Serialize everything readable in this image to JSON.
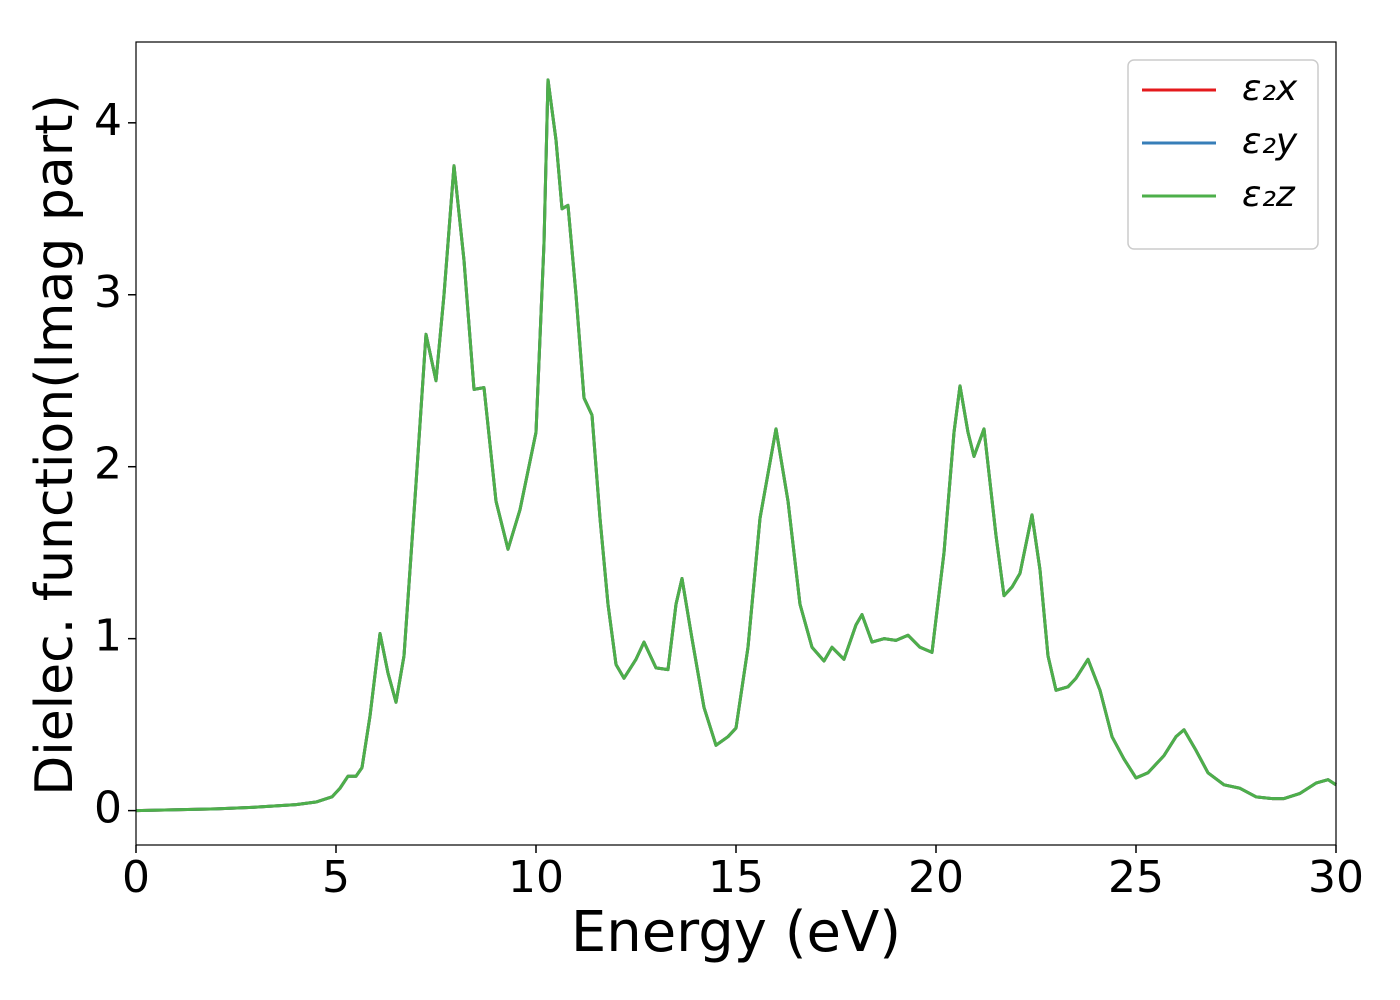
{
  "chart_data": {
    "type": "line",
    "xlabel": "Energy (eV)",
    "ylabel": "Dielec. function(Imag part)",
    "x": [
      0,
      1,
      2,
      3,
      4,
      4.5,
      4.9,
      5.1,
      5.3,
      5.5,
      5.65,
      5.85,
      6.1,
      6.3,
      6.5,
      6.7,
      7.0,
      7.25,
      7.5,
      7.7,
      7.95,
      8.2,
      8.45,
      8.7,
      9.0,
      9.3,
      9.6,
      10.0,
      10.2,
      10.3,
      10.5,
      10.65,
      10.8,
      11.0,
      11.2,
      11.4,
      11.6,
      11.8,
      12.0,
      12.2,
      12.5,
      12.7,
      13.0,
      13.3,
      13.5,
      13.65,
      13.9,
      14.2,
      14.5,
      14.8,
      15.0,
      15.3,
      15.6,
      16.0,
      16.3,
      16.6,
      16.9,
      17.2,
      17.4,
      17.7,
      18.0,
      18.15,
      18.4,
      18.7,
      19.0,
      19.3,
      19.6,
      19.9,
      20.2,
      20.45,
      20.6,
      20.8,
      20.95,
      21.2,
      21.5,
      21.7,
      21.9,
      22.1,
      22.4,
      22.6,
      22.8,
      23.0,
      23.3,
      23.5,
      23.8,
      24.1,
      24.4,
      24.7,
      25.0,
      25.3,
      25.7,
      26.0,
      26.2,
      26.5,
      26.8,
      27.2,
      27.6,
      28.0,
      28.4,
      28.7,
      29.1,
      29.5,
      29.8,
      30
    ],
    "series": [
      {
        "name": "ε₂x",
        "color": "#e41a1c",
        "values": [
          0,
          0.005,
          0.01,
          0.02,
          0.035,
          0.05,
          0.08,
          0.13,
          0.2,
          0.2,
          0.25,
          0.55,
          1.03,
          0.8,
          0.63,
          0.9,
          1.9,
          2.77,
          2.5,
          3.0,
          3.75,
          3.2,
          2.45,
          2.46,
          1.8,
          1.52,
          1.75,
          2.2,
          3.3,
          4.25,
          3.9,
          3.5,
          3.52,
          3.0,
          2.4,
          2.3,
          1.7,
          1.2,
          0.85,
          0.77,
          0.88,
          0.98,
          0.83,
          0.82,
          1.2,
          1.35,
          1.0,
          0.6,
          0.38,
          0.43,
          0.48,
          0.95,
          1.7,
          2.22,
          1.8,
          1.2,
          0.95,
          0.87,
          0.95,
          0.88,
          1.08,
          1.14,
          0.98,
          1.0,
          0.99,
          1.02,
          0.95,
          0.92,
          1.5,
          2.2,
          2.47,
          2.2,
          2.06,
          2.22,
          1.6,
          1.25,
          1.3,
          1.38,
          1.72,
          1.4,
          0.9,
          0.7,
          0.72,
          0.77,
          0.88,
          0.7,
          0.43,
          0.3,
          0.19,
          0.22,
          0.32,
          0.43,
          0.47,
          0.35,
          0.22,
          0.15,
          0.13,
          0.08,
          0.07,
          0.07,
          0.1,
          0.16,
          0.18,
          0.15
        ]
      },
      {
        "name": "ε₂y",
        "color": "#377eb8",
        "values": [
          0,
          0.005,
          0.01,
          0.02,
          0.035,
          0.05,
          0.08,
          0.13,
          0.2,
          0.2,
          0.25,
          0.55,
          1.03,
          0.8,
          0.63,
          0.9,
          1.9,
          2.77,
          2.5,
          3.0,
          3.75,
          3.2,
          2.45,
          2.46,
          1.8,
          1.52,
          1.75,
          2.2,
          3.3,
          4.25,
          3.9,
          3.5,
          3.52,
          3.0,
          2.4,
          2.3,
          1.7,
          1.2,
          0.85,
          0.77,
          0.88,
          0.98,
          0.83,
          0.82,
          1.2,
          1.35,
          1.0,
          0.6,
          0.38,
          0.43,
          0.48,
          0.95,
          1.7,
          2.22,
          1.8,
          1.2,
          0.95,
          0.87,
          0.95,
          0.88,
          1.08,
          1.14,
          0.98,
          1.0,
          0.99,
          1.02,
          0.95,
          0.92,
          1.5,
          2.2,
          2.47,
          2.2,
          2.06,
          2.22,
          1.6,
          1.25,
          1.3,
          1.38,
          1.72,
          1.4,
          0.9,
          0.7,
          0.72,
          0.77,
          0.88,
          0.7,
          0.43,
          0.3,
          0.19,
          0.22,
          0.32,
          0.43,
          0.47,
          0.35,
          0.22,
          0.15,
          0.13,
          0.08,
          0.07,
          0.07,
          0.1,
          0.16,
          0.18,
          0.15
        ]
      },
      {
        "name": "ε₂z",
        "color": "#4daf4a",
        "values": [
          0,
          0.005,
          0.01,
          0.02,
          0.035,
          0.05,
          0.08,
          0.13,
          0.2,
          0.2,
          0.25,
          0.55,
          1.03,
          0.8,
          0.63,
          0.9,
          1.9,
          2.77,
          2.5,
          3.0,
          3.75,
          3.2,
          2.45,
          2.46,
          1.8,
          1.52,
          1.75,
          2.2,
          3.3,
          4.25,
          3.9,
          3.5,
          3.52,
          3.0,
          2.4,
          2.3,
          1.7,
          1.2,
          0.85,
          0.77,
          0.88,
          0.98,
          0.83,
          0.82,
          1.2,
          1.35,
          1.0,
          0.6,
          0.38,
          0.43,
          0.48,
          0.95,
          1.7,
          2.22,
          1.8,
          1.2,
          0.95,
          0.87,
          0.95,
          0.88,
          1.08,
          1.14,
          0.98,
          1.0,
          0.99,
          1.02,
          0.95,
          0.92,
          1.5,
          2.2,
          2.47,
          2.2,
          2.06,
          2.22,
          1.6,
          1.25,
          1.3,
          1.38,
          1.72,
          1.4,
          0.9,
          0.7,
          0.72,
          0.77,
          0.88,
          0.7,
          0.43,
          0.3,
          0.19,
          0.22,
          0.32,
          0.43,
          0.47,
          0.35,
          0.22,
          0.15,
          0.13,
          0.08,
          0.07,
          0.07,
          0.1,
          0.16,
          0.18,
          0.15
        ]
      }
    ],
    "xlim": [
      0,
      30
    ],
    "xticks": [
      0,
      5,
      10,
      15,
      20,
      25,
      30
    ],
    "ylim": [
      -0.2,
      4.47
    ],
    "yticks": [
      0,
      1,
      2,
      3,
      4
    ],
    "grid": false,
    "legend": "upper right"
  }
}
